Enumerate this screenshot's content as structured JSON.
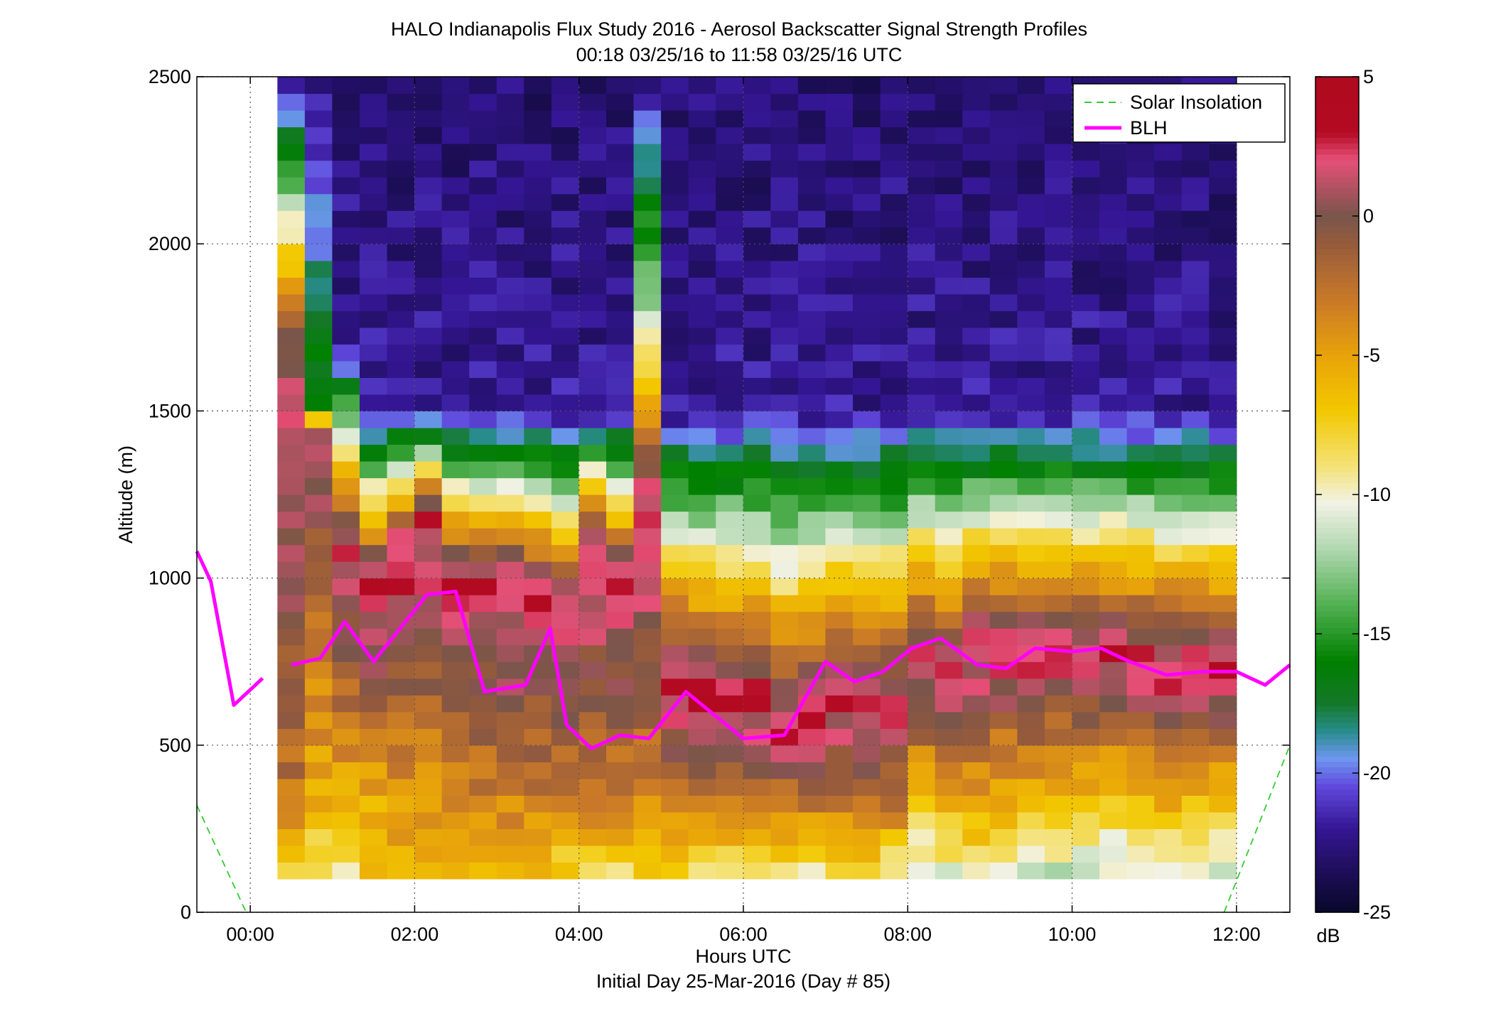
{
  "chart_data": {
    "type": "heatmap",
    "title": "HALO Indianapolis Flux Study 2016 - Aerosol Backscatter Signal Strength Profiles",
    "subtitle": "00:18 03/25/16 to 11:58 03/25/16  UTC",
    "xlabel": "Hours UTC",
    "ylabel": "Altitude (m)",
    "footer": "Initial Day 25-Mar-2016 (Day # 85)",
    "xlim": [
      -0.65,
      12.65
    ],
    "ylim": [
      0,
      2500
    ],
    "x_ticks": [
      0,
      2,
      4,
      6,
      8,
      10,
      12
    ],
    "x_tick_labels": [
      "00:00",
      "02:00",
      "04:00",
      "06:00",
      "08:00",
      "10:00",
      "12:00"
    ],
    "y_ticks": [
      0,
      500,
      1000,
      1500,
      2000,
      2500
    ],
    "y_tick_labels": [
      "0",
      "500",
      "1000",
      "1500",
      "2000",
      "2500"
    ],
    "grid": true,
    "legend_position": "top-right",
    "legend": [
      "Solar Insolation",
      "BLH"
    ],
    "colorbar": {
      "label": "dB",
      "min": -25,
      "max": 5,
      "ticks": [
        5,
        0,
        -5,
        -10,
        -15,
        -20,
        -25
      ],
      "tick_labels": [
        "5",
        "0",
        "-5",
        "-10",
        "-15",
        "-20",
        "-25"
      ]
    },
    "heatmap": {
      "x_start": 0.33,
      "x_end": 12.0,
      "columns": 35,
      "y_start": 100,
      "y_end": 2500,
      "rows": 48,
      "value_unit": "dB",
      "profile_ranges": [
        [
          -10,
          -3,
          1.5,
          1400,
          0,
          1700,
          -22.5,
          2500
        ],
        [
          -12,
          -6,
          1.5,
          1450,
          -16,
          1500,
          -22,
          2500
        ],
        [
          -11,
          -6,
          2.0,
          1100,
          -22,
          1700,
          -23,
          2500
        ],
        [
          -6,
          -6,
          3.0,
          1000,
          -22,
          1500,
          -23,
          2500
        ],
        [
          -7,
          -5,
          3.0,
          1100,
          -22,
          1500,
          -23,
          2500
        ],
        [
          -7,
          -5,
          3.0,
          1200,
          -22,
          1500,
          -23,
          2500
        ],
        [
          -7,
          -5,
          3.0,
          1000,
          -22,
          1500,
          -23,
          2500
        ],
        [
          -7,
          -4,
          3.0,
          1000,
          -22,
          1500,
          -23,
          2500
        ],
        [
          -7,
          -4,
          3.0,
          1000,
          -22,
          1500,
          -23,
          2500
        ],
        [
          -7,
          -4,
          3.0,
          950,
          -22,
          1500,
          -23,
          2500
        ],
        [
          -11,
          -4,
          3.0,
          900,
          -22,
          1500,
          -23,
          2500
        ],
        [
          -14,
          -4,
          3.0,
          1100,
          -22,
          1500,
          -23,
          2500
        ],
        [
          -12,
          -4,
          3.0,
          1000,
          -22,
          1500,
          -23,
          2500
        ],
        [
          -11,
          -4,
          3.0,
          1200,
          -10,
          1700,
          -23,
          2500
        ],
        [
          -11,
          -4,
          3.0,
          700,
          -22,
          1500,
          -23,
          2500
        ],
        [
          -13,
          -4,
          3.0,
          650,
          -22,
          1500,
          -23,
          2500
        ],
        [
          -15,
          -4,
          3.0,
          650,
          -22,
          1500,
          -23,
          2500
        ],
        [
          -12,
          -4,
          3.0,
          650,
          -22,
          1500,
          -23,
          2500
        ],
        [
          -14,
          -4,
          3.0,
          550,
          -22,
          1500,
          -23,
          2500
        ],
        [
          -14,
          -4,
          3.0,
          600,
          -22,
          1500,
          -23,
          2500
        ],
        [
          -12,
          -4,
          3.0,
          650,
          -22,
          1500,
          -23,
          2500
        ],
        [
          -11,
          -4,
          3.0,
          600,
          -22,
          1500,
          -23,
          2500
        ],
        [
          -14,
          -4,
          3.0,
          620,
          -22,
          1500,
          -23,
          2500
        ],
        [
          -12,
          -8,
          3.0,
          750,
          -22,
          1500,
          -23,
          2500
        ],
        [
          -13,
          -7,
          3.0,
          700,
          -22,
          1500,
          -23,
          2500
        ],
        [
          -12,
          -6,
          3.0,
          800,
          -22,
          1500,
          -23,
          2500
        ],
        [
          -13,
          -7,
          3.0,
          800,
          -22,
          1500,
          -23,
          2500
        ],
        [
          -13,
          -7,
          3.0,
          780,
          -22,
          1500,
          -23,
          2500
        ],
        [
          -14,
          -8,
          3.0,
          780,
          -22,
          1500,
          -23,
          2500
        ],
        [
          -14,
          -8,
          3.0,
          780,
          -22,
          1500,
          -23,
          2500
        ],
        [
          -14,
          -8,
          3.0,
          780,
          -22,
          1500,
          -23,
          2500
        ],
        [
          -13,
          -8,
          3.0,
          760,
          -22,
          1500,
          -23,
          2500
        ],
        [
          -12,
          -7,
          3.0,
          740,
          -22,
          1500,
          -23,
          2500
        ],
        [
          -12,
          -7,
          3.0,
          740,
          -22,
          1500,
          -23,
          2500
        ],
        [
          -13,
          -8,
          3.0,
          730,
          -22,
          1500,
          -23,
          2500
        ]
      ]
    },
    "series": [
      {
        "name": "BLH",
        "color": "#ff00ff",
        "x": [
          -0.65,
          -0.48,
          -0.2,
          0.15
        ],
        "y": [
          1080,
          990,
          620,
          700
        ]
      },
      {
        "name": "BLH",
        "color": "#ff00ff",
        "x": [
          0.5,
          0.85,
          1.15,
          1.5,
          2.15,
          2.5,
          2.85,
          3.35,
          3.65,
          3.85,
          4.15,
          4.5,
          4.85,
          5.3,
          5.65,
          6.0,
          6.5,
          7.0,
          7.35,
          7.7,
          8.05,
          8.4,
          8.85,
          9.2,
          9.55,
          10.0,
          10.35,
          10.7,
          11.15,
          11.6,
          12.0,
          12.35,
          12.65
        ],
        "y": [
          740,
          760,
          870,
          750,
          950,
          960,
          660,
          680,
          850,
          560,
          490,
          530,
          520,
          660,
          590,
          520,
          530,
          750,
          690,
          720,
          790,
          820,
          740,
          730,
          790,
          780,
          790,
          750,
          710,
          720,
          720,
          680,
          740
        ]
      },
      {
        "name": "Solar Insolation",
        "color": "#33cc33",
        "dashed": true,
        "x": [
          -0.65,
          -0.05
        ],
        "y": [
          320,
          0
        ]
      },
      {
        "name": "Solar Insolation",
        "color": "#33cc33",
        "dashed": true,
        "x": [
          11.85,
          12.65
        ],
        "y": [
          0,
          500
        ]
      }
    ]
  }
}
